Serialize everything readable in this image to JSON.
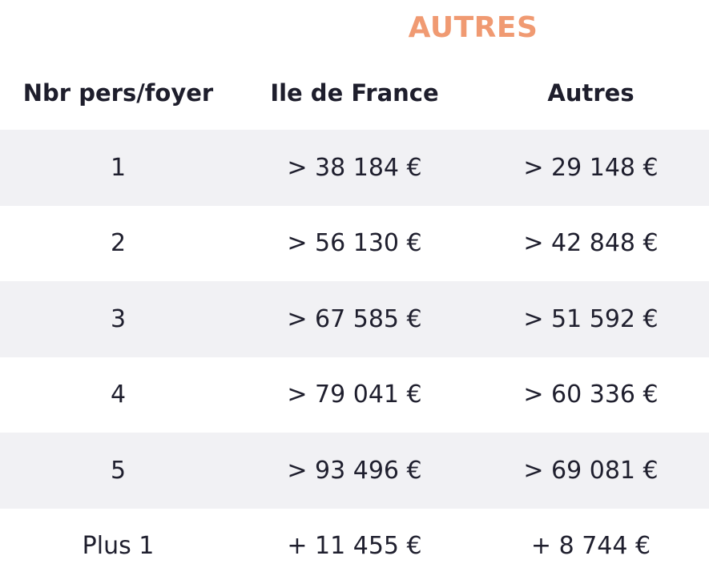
{
  "title": "AUTRES",
  "columns": [
    "Nbr pers/foyer",
    "Ile de France",
    "Autres"
  ],
  "rows": [
    [
      "1",
      "> 38 184 €",
      "> 29 148 €"
    ],
    [
      "2",
      "> 56 130 €",
      "> 42 848 €"
    ],
    [
      "3",
      "> 67 585 €",
      "> 51 592 €"
    ],
    [
      "4",
      "> 79 041 €",
      "> 60 336 €"
    ],
    [
      "5",
      "> 93 496 €",
      "> 69 081 €"
    ],
    [
      "Plus 1",
      "+ 11 455 €",
      "+ 8 744 €"
    ]
  ],
  "colors": {
    "title": "#f09a72",
    "stripe": "#f1f1f4",
    "text": "#1f1f2e"
  }
}
